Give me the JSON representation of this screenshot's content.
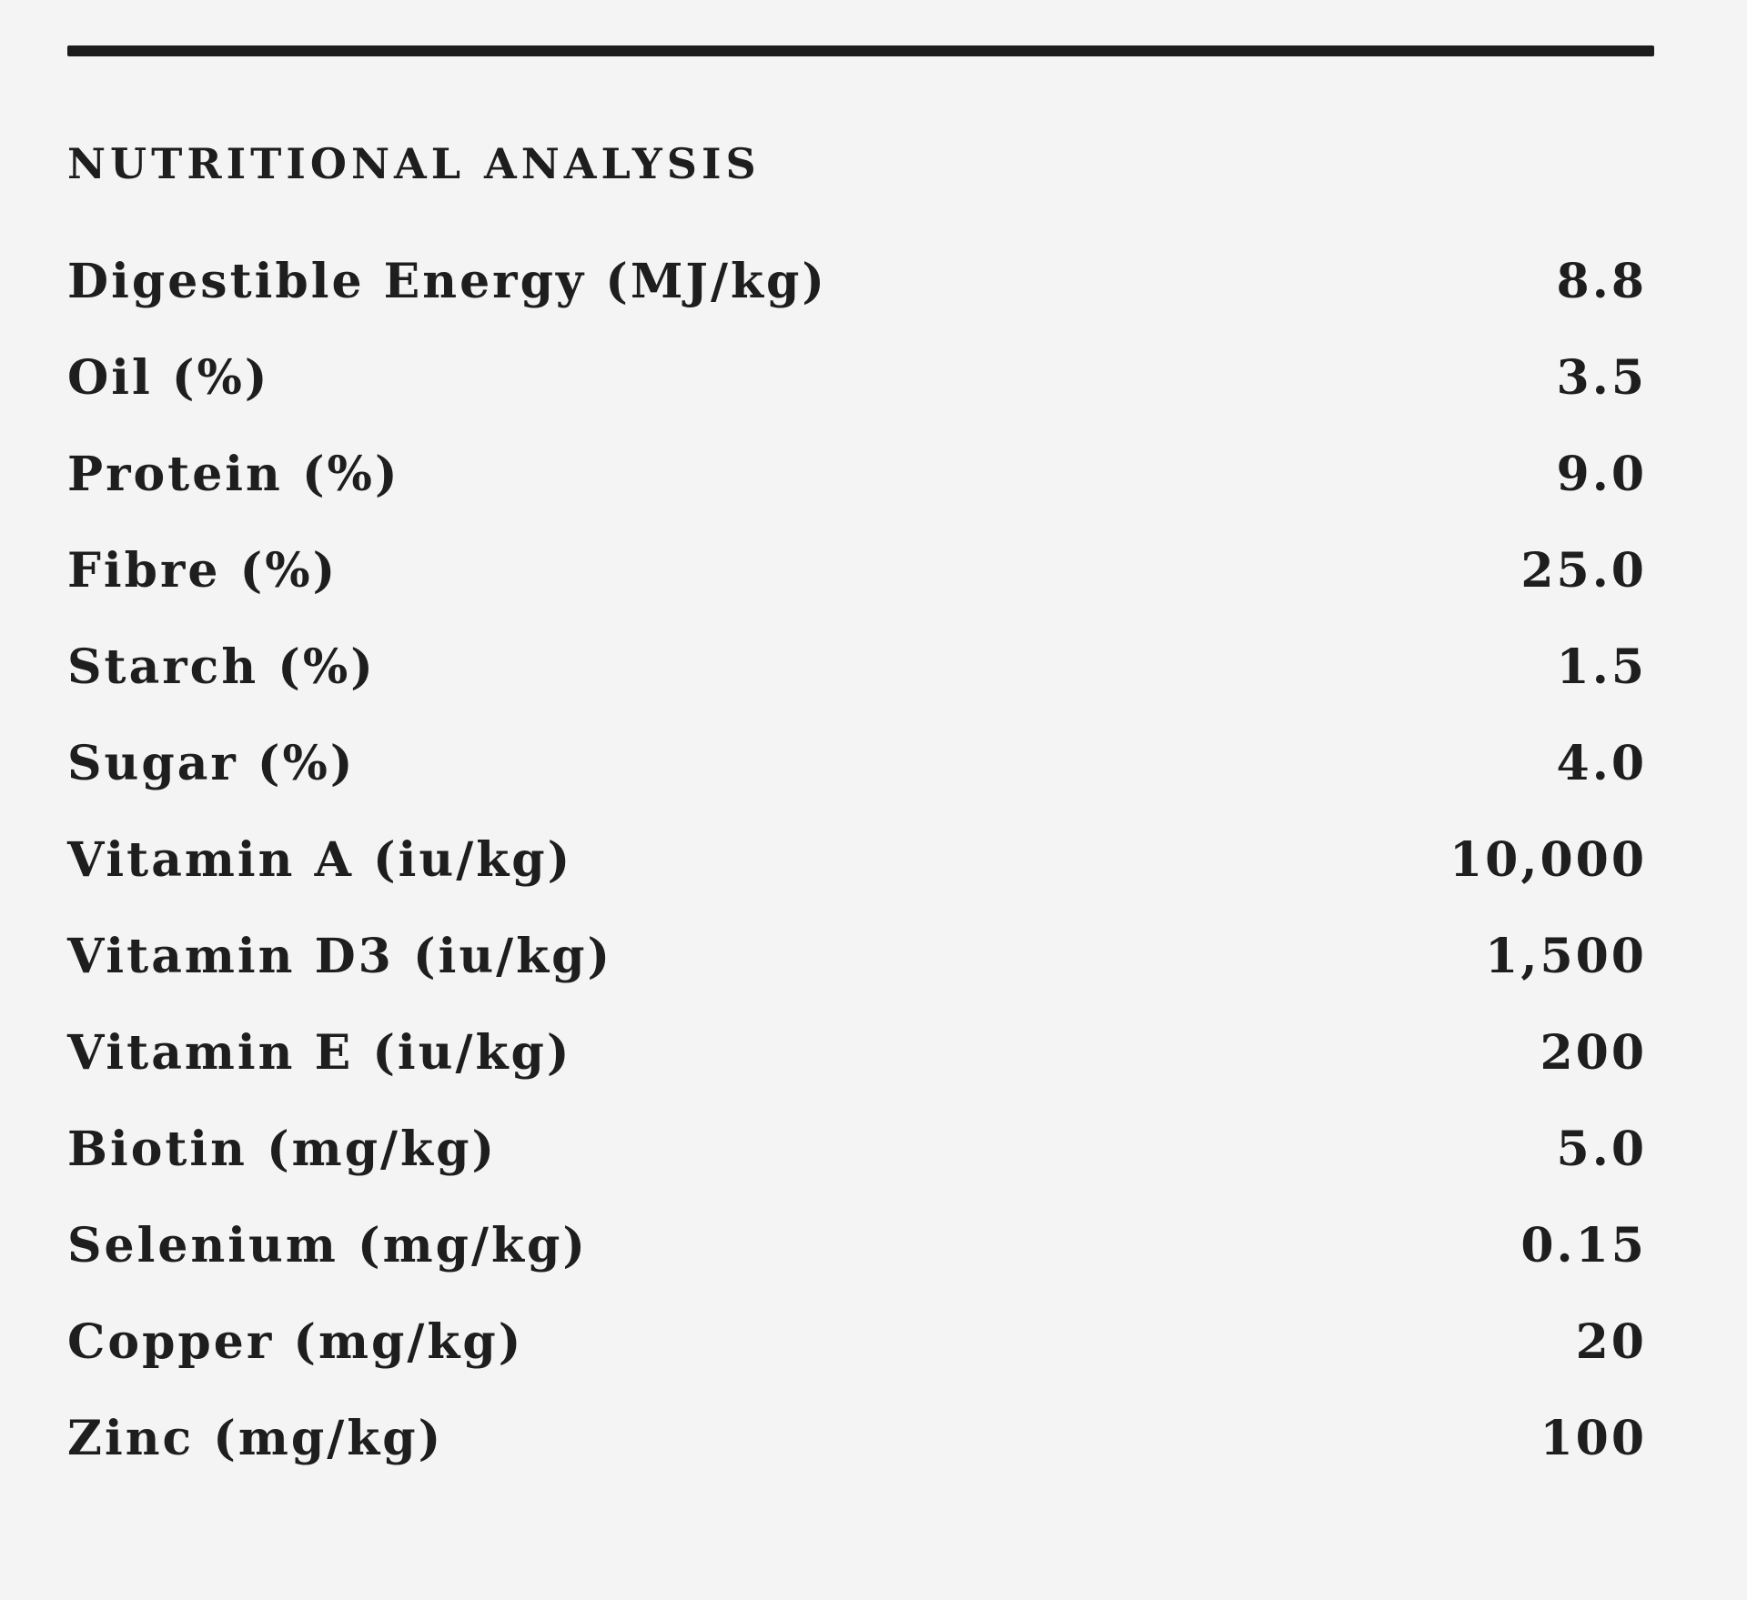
{
  "section": {
    "title": "NUTRITIONAL ANALYSIS"
  },
  "rows": [
    {
      "label": "Digestible Energy (MJ/kg)",
      "value": "8.8"
    },
    {
      "label": "Oil (%)",
      "value": "3.5"
    },
    {
      "label": "Protein (%)",
      "value": "9.0"
    },
    {
      "label": "Fibre (%)",
      "value": "25.0"
    },
    {
      "label": "Starch (%)",
      "value": "1.5"
    },
    {
      "label": "Sugar (%)",
      "value": "4.0"
    },
    {
      "label": "Vitamin A (iu/kg)",
      "value": "10,000"
    },
    {
      "label": "Vitamin D3 (iu/kg)",
      "value": "1,500"
    },
    {
      "label": "Vitamin E (iu/kg)",
      "value": "200"
    },
    {
      "label": "Biotin (mg/kg)",
      "value": "5.0"
    },
    {
      "label": "Selenium (mg/kg)",
      "value": "0.15"
    },
    {
      "label": "Copper (mg/kg)",
      "value": "20"
    },
    {
      "label": "Zinc (mg/kg)",
      "value": "100"
    }
  ]
}
